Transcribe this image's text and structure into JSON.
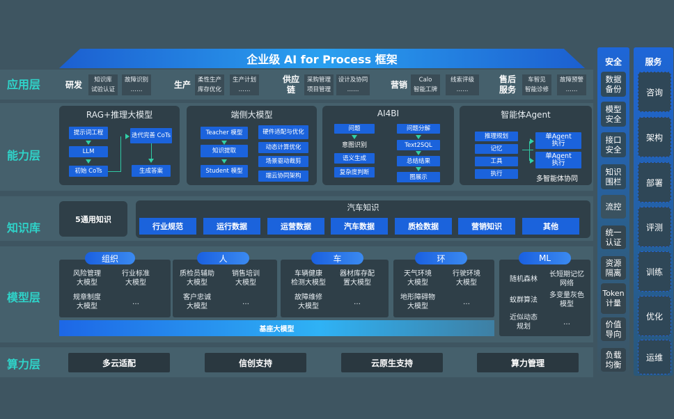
{
  "title": "企业级 AI for Process 框架",
  "layers": {
    "app": "应用层",
    "ability": "能力层",
    "knowledge": "知识库",
    "model": "模型层",
    "compute": "算力层"
  },
  "app": {
    "groups": [
      {
        "name": "研发",
        "cells": [
          "知识库\n试验认证",
          "故障识别\n……"
        ]
      },
      {
        "name": "生产",
        "cells": [
          "柔性生产\n库存优化",
          "生产计划\n……"
        ]
      },
      {
        "name": "供应链",
        "cells": [
          "采购管理\n项目管理",
          "设计及协同\n……"
        ]
      },
      {
        "name": "营销",
        "cells": [
          "Calo\n智能工牌",
          "线索评级\n……"
        ]
      },
      {
        "name": "售后服务",
        "cells": [
          "车智见\n智能诊修",
          "故障预警\n……"
        ]
      }
    ]
  },
  "ability": {
    "rag": {
      "title": "RAG+推理大模型",
      "items": [
        "提示词工程",
        "LLM",
        "初始 CoTs",
        "迭代完善 CoTs",
        "生成答案"
      ]
    },
    "edge": {
      "title": "端侧大模型",
      "left": [
        "Teacher 模型",
        "知识提取",
        "Student 模型"
      ],
      "right": [
        "硬件适配与优化",
        "动态计算优化",
        "场景驱动裁剪",
        "端云协同架构"
      ]
    },
    "ai4bi": {
      "title": "AI4BI",
      "left": [
        "问题",
        "意图识别",
        "语义生成",
        "复杂度判断"
      ],
      "right": [
        "问题分解",
        "Text2SQL",
        "总结结果",
        "图展示"
      ]
    },
    "agent": {
      "title": "智能体Agent",
      "left": [
        "推理规划",
        "记忆",
        "工具",
        "执行"
      ],
      "right": [
        "单Agent 执行",
        "单Agent 执行"
      ],
      "caption": "多智能体协同"
    }
  },
  "knowledge": {
    "general": "5通用知识",
    "auto_title": "汽车知识",
    "items": [
      "行业规范",
      "运行数据",
      "运营数据",
      "汽车数据",
      "质检数据",
      "营销知识",
      "其他"
    ]
  },
  "model": {
    "groups": [
      {
        "pill": "组织",
        "items": [
          "风险管理\n大模型",
          "行业标准\n大模型",
          "规章制度\n大模型",
          "…"
        ]
      },
      {
        "pill": "人",
        "items": [
          "质检员辅助\n大模型",
          "销售培训\n大模型",
          "客户忠诚\n大模型",
          "…"
        ]
      },
      {
        "pill": "车",
        "items": [
          "车辆健康\n检测大模型",
          "器材库存配\n置大模型",
          "故障维修\n大模型",
          "…"
        ]
      },
      {
        "pill": "环",
        "items": [
          "天气环境\n大模型",
          "行驶环境\n大模型",
          "地形障碍物\n大模型",
          "…"
        ]
      },
      {
        "pill": "ML",
        "items": [
          "随机森林",
          "长短期记忆\n网络",
          "蚁群算法",
          "多变量灰色\n模型",
          "近似动态\n规划",
          "…"
        ]
      }
    ],
    "base": "基座大模型"
  },
  "compute": [
    "多云适配",
    "信创支持",
    "云原生支持",
    "算力管理"
  ],
  "security": {
    "title": "安全",
    "items": [
      "数据\n备份",
      "模型\n安全",
      "接口\n安全",
      "知识\n围栏",
      "流控",
      "统一\n认证",
      "资源\n隔离",
      "Token\n计量",
      "价值\n导向",
      "负载\n均衡"
    ]
  },
  "service": {
    "title": "服务",
    "items": [
      "咨询",
      "架构",
      "部署",
      "评测",
      "训练",
      "优化",
      "运维"
    ]
  },
  "colors": {
    "background": "#3e5561",
    "accent_blue": "#1b63dc",
    "layer_label": "#2fd3c9",
    "arrow": "#31d0a6"
  }
}
